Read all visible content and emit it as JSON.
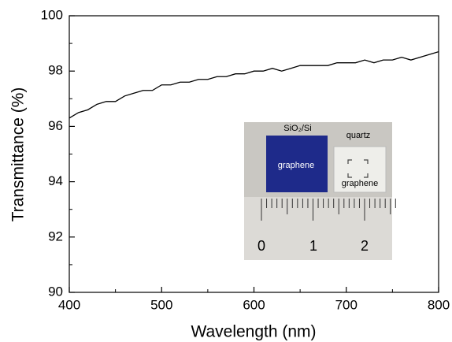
{
  "chart_data": {
    "type": "line",
    "x_label": "Wavelength (nm)",
    "y_label": "Transmittance (%)",
    "x": [
      400,
      410,
      420,
      430,
      440,
      450,
      460,
      470,
      480,
      490,
      500,
      510,
      520,
      530,
      540,
      550,
      560,
      570,
      580,
      590,
      600,
      610,
      620,
      630,
      640,
      650,
      660,
      670,
      680,
      690,
      700,
      710,
      720,
      730,
      740,
      750,
      760,
      770,
      780,
      790,
      800
    ],
    "series": [
      {
        "color": "#000000",
        "values": [
          96.3,
          96.5,
          96.6,
          96.8,
          96.9,
          96.9,
          97.1,
          97.2,
          97.3,
          97.3,
          97.5,
          97.5,
          97.6,
          97.6,
          97.7,
          97.7,
          97.8,
          97.8,
          97.9,
          97.9,
          98.0,
          98.0,
          98.1,
          98.0,
          98.1,
          98.2,
          98.2,
          98.2,
          98.2,
          98.3,
          98.3,
          98.3,
          98.4,
          98.3,
          98.4,
          98.4,
          98.5,
          98.4,
          98.5,
          98.6,
          98.7
        ]
      }
    ],
    "xlim": [
      400,
      800
    ],
    "xticks": [
      400,
      500,
      600,
      700,
      800
    ],
    "ylim": [
      90,
      100
    ],
    "yticks": [
      90,
      92,
      94,
      96,
      98,
      100
    ],
    "inset": {
      "labels": [
        "SiO₂/Si",
        "quartz",
        "graphene",
        "graphene"
      ],
      "ruler_labels": [
        "0",
        "1",
        "2"
      ]
    }
  }
}
